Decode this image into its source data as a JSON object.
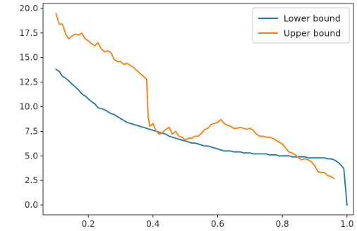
{
  "chart_data": {
    "type": "line",
    "title": "",
    "xlabel": "",
    "ylabel": "",
    "xlim": [
      0.06,
      1.02
    ],
    "ylim": [
      -1.0,
      20.5
    ],
    "grid": false,
    "legend_position": "top-right",
    "x_ticks": [
      0.2,
      0.4,
      0.6,
      0.8,
      1.0
    ],
    "x_tick_labels": [
      "0.2",
      "0.4",
      "0.6",
      "0.8",
      "1.0"
    ],
    "y_ticks": [
      0.0,
      2.5,
      5.0,
      7.5,
      10.0,
      12.5,
      15.0,
      17.5,
      20.0
    ],
    "y_tick_labels": [
      "0.0",
      "2.5",
      "5.0",
      "7.5",
      "10.0",
      "12.5",
      "15.0",
      "17.5",
      "20.0"
    ],
    "series": [
      {
        "name": "Lower bound",
        "color": "#1f77b4",
        "x": [
          0.1,
          0.11,
          0.12,
          0.13,
          0.14,
          0.15,
          0.16,
          0.17,
          0.18,
          0.19,
          0.2,
          0.21,
          0.22,
          0.23,
          0.24,
          0.25,
          0.26,
          0.27,
          0.28,
          0.29,
          0.3,
          0.31,
          0.32,
          0.33,
          0.34,
          0.35,
          0.36,
          0.37,
          0.38,
          0.39,
          0.4,
          0.41,
          0.42,
          0.43,
          0.44,
          0.45,
          0.46,
          0.47,
          0.48,
          0.49,
          0.5,
          0.51,
          0.52,
          0.53,
          0.54,
          0.55,
          0.56,
          0.57,
          0.58,
          0.59,
          0.6,
          0.61,
          0.62,
          0.63,
          0.64,
          0.65,
          0.66,
          0.67,
          0.68,
          0.69,
          0.7,
          0.71,
          0.72,
          0.73,
          0.74,
          0.75,
          0.76,
          0.77,
          0.78,
          0.79,
          0.8,
          0.81,
          0.82,
          0.83,
          0.84,
          0.85,
          0.86,
          0.87,
          0.88,
          0.89,
          0.9,
          0.91,
          0.92,
          0.93,
          0.94,
          0.95,
          0.96,
          0.97,
          0.98,
          0.99,
          1.0
        ],
        "values": [
          13.8,
          13.6,
          13.1,
          12.9,
          12.6,
          12.3,
          12.0,
          11.7,
          11.3,
          11.1,
          10.8,
          10.5,
          10.3,
          9.9,
          9.8,
          9.7,
          9.5,
          9.3,
          9.2,
          9.0,
          8.8,
          8.6,
          8.4,
          8.3,
          8.2,
          8.1,
          8.0,
          7.9,
          7.8,
          7.7,
          7.6,
          7.5,
          7.4,
          7.3,
          7.2,
          7.0,
          6.9,
          6.8,
          6.7,
          6.6,
          6.5,
          6.4,
          6.3,
          6.3,
          6.2,
          6.1,
          6.0,
          6.0,
          5.9,
          5.8,
          5.7,
          5.6,
          5.5,
          5.5,
          5.5,
          5.4,
          5.4,
          5.4,
          5.3,
          5.3,
          5.3,
          5.2,
          5.2,
          5.2,
          5.2,
          5.2,
          5.1,
          5.1,
          5.1,
          5.0,
          5.0,
          5.0,
          5.0,
          4.9,
          4.9,
          4.9,
          4.9,
          4.9,
          4.8,
          4.8,
          4.8,
          4.8,
          4.8,
          4.8,
          4.7,
          4.7,
          4.6,
          4.4,
          4.1,
          3.7,
          0.0
        ]
      },
      {
        "name": "Upper bound",
        "color": "#ff7f0e",
        "x": [
          0.1,
          0.11,
          0.12,
          0.13,
          0.14,
          0.15,
          0.16,
          0.17,
          0.18,
          0.19,
          0.2,
          0.21,
          0.22,
          0.23,
          0.24,
          0.25,
          0.26,
          0.27,
          0.28,
          0.29,
          0.3,
          0.31,
          0.32,
          0.33,
          0.34,
          0.35,
          0.36,
          0.37,
          0.38,
          0.385,
          0.39,
          0.4,
          0.41,
          0.42,
          0.43,
          0.44,
          0.45,
          0.46,
          0.47,
          0.48,
          0.49,
          0.5,
          0.51,
          0.52,
          0.53,
          0.54,
          0.55,
          0.56,
          0.57,
          0.58,
          0.59,
          0.6,
          0.61,
          0.62,
          0.63,
          0.64,
          0.65,
          0.66,
          0.67,
          0.68,
          0.69,
          0.7,
          0.71,
          0.72,
          0.73,
          0.74,
          0.75,
          0.76,
          0.77,
          0.78,
          0.79,
          0.8,
          0.81,
          0.82,
          0.83,
          0.84,
          0.85,
          0.86,
          0.87,
          0.88,
          0.89,
          0.9,
          0.91,
          0.92,
          0.93,
          0.94,
          0.95,
          0.96
        ],
        "values": [
          19.5,
          18.4,
          18.4,
          17.4,
          16.9,
          17.2,
          17.4,
          17.3,
          17.5,
          16.9,
          16.7,
          16.4,
          16.2,
          16.5,
          15.9,
          15.6,
          15.7,
          15.5,
          14.8,
          14.6,
          14.6,
          14.3,
          14.4,
          14.2,
          14.0,
          13.7,
          13.4,
          13.1,
          12.8,
          9.0,
          8.0,
          8.3,
          7.5,
          7.2,
          7.4,
          7.7,
          7.9,
          7.2,
          7.5,
          7.0,
          6.9,
          6.6,
          6.8,
          6.8,
          7.0,
          7.0,
          7.3,
          7.7,
          7.8,
          8.2,
          8.3,
          8.4,
          8.7,
          8.3,
          8.1,
          8.0,
          7.8,
          7.8,
          7.9,
          7.8,
          7.7,
          7.8,
          7.6,
          7.2,
          7.0,
          7.0,
          6.9,
          6.9,
          6.8,
          6.6,
          6.4,
          6.2,
          5.8,
          5.4,
          5.3,
          5.1,
          4.8,
          4.6,
          4.7,
          4.6,
          4.4,
          4.0,
          3.4,
          3.3,
          3.3,
          3.0,
          2.9,
          2.7
        ]
      }
    ]
  }
}
